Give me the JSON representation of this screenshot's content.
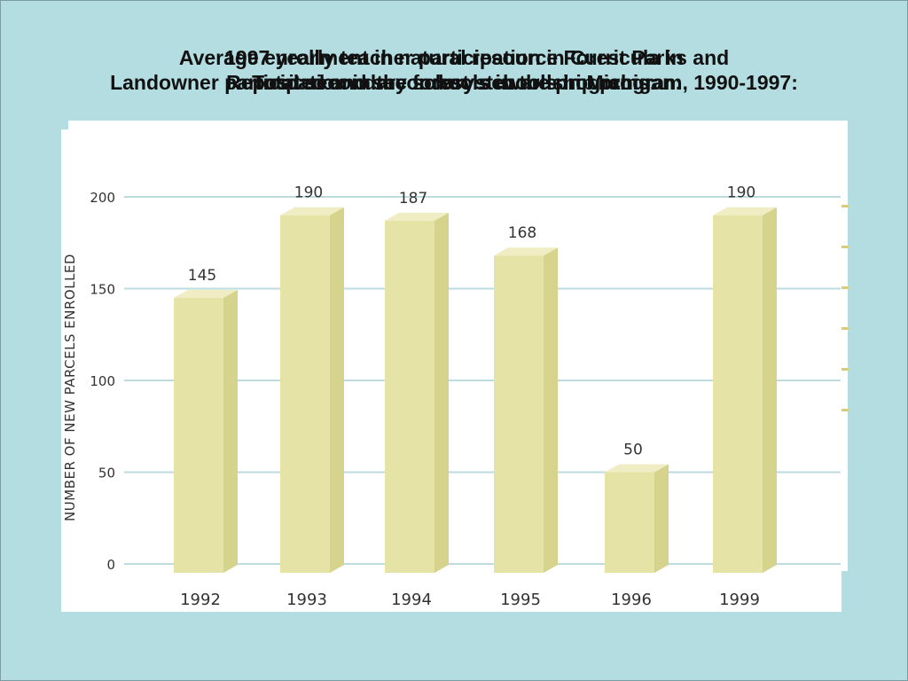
{
  "titles": {
    "line_a1": "Average enrollment in natural resource Forest Parks and",
    "line_a2": "Landowner participation in the forest stewardship program, 1990-1997:",
    "line_b1": "1997 yearly teacher participation in Curricula in",
    "line_b2": "Reposited and secondary schools in Michigan:",
    "line_c1": "",
    "line_c2": "Total secondary schools in the programs:"
  },
  "colors": {
    "background": "#b4dde2",
    "bar_front": "#e6e3a6",
    "bar_side": "#d6d38d",
    "bar_top": "#f0edc4",
    "grid": "#bcdce0"
  },
  "chart_data": {
    "type": "bar",
    "categories": [
      "1992",
      "1993",
      "1994",
      "1995",
      "1996",
      "1999"
    ],
    "values": [
      145,
      190,
      187,
      168,
      50,
      190
    ],
    "value_labels": [
      "145",
      "190",
      "187",
      "168",
      "50",
      "190"
    ],
    "ylabel": "NUMBER OF NEW PARCELS ENROLLED",
    "xlabel": "",
    "ylim": [
      0,
      200
    ],
    "yticks": [
      "0",
      "50",
      "100",
      "150",
      "200"
    ],
    "grid": true,
    "style": "3d-bars"
  }
}
